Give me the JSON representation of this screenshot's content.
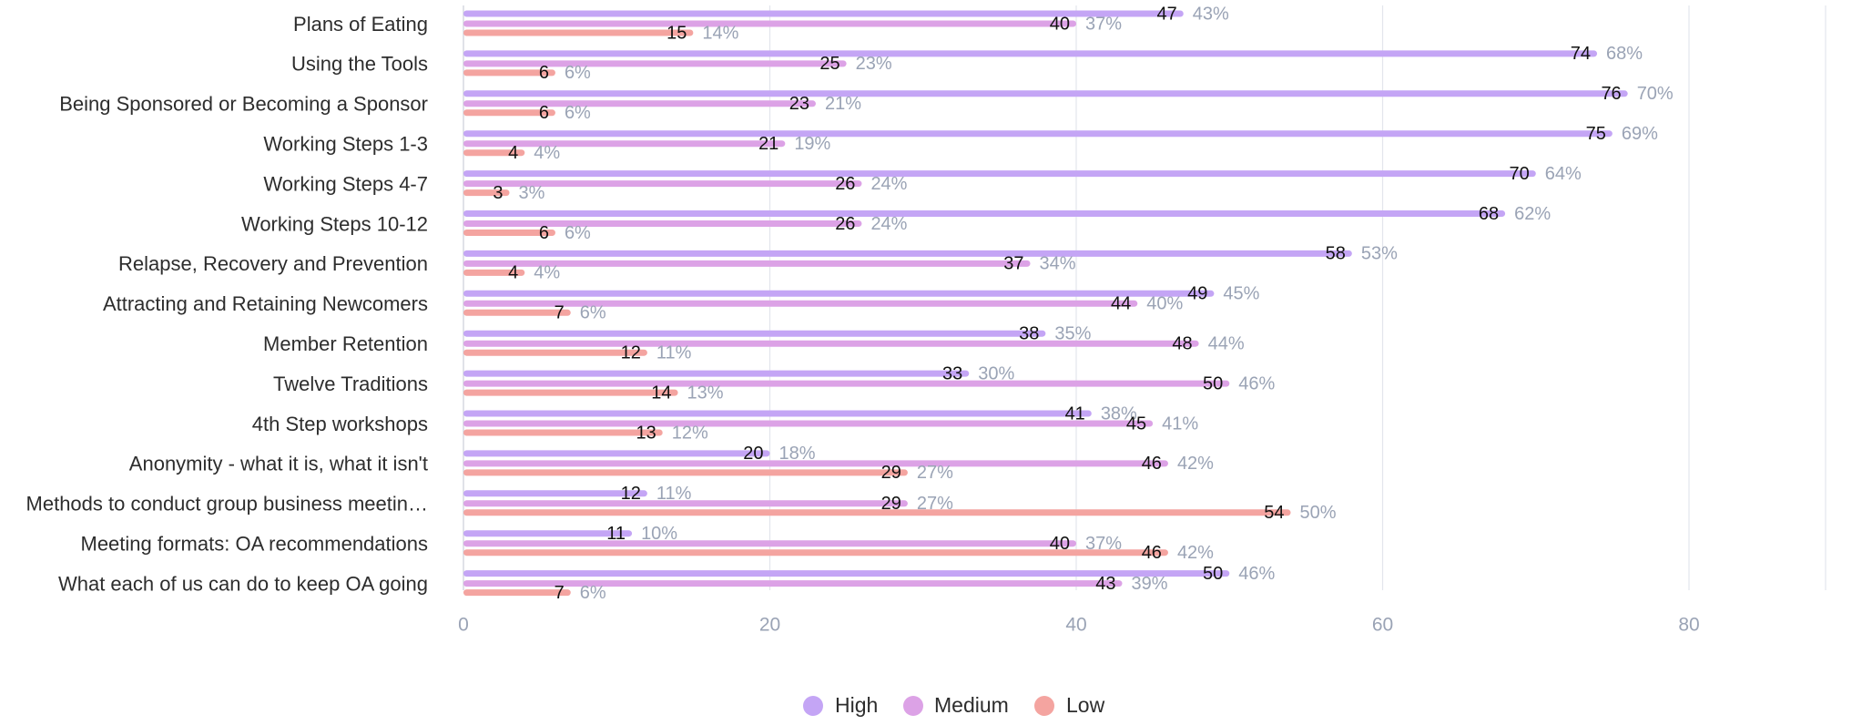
{
  "chart_data": {
    "type": "bar",
    "orientation": "horizontal",
    "categories": [
      "Plans of Eating",
      "Using the Tools",
      "Being Sponsored or Becoming a Sponsor",
      "Working Steps 1-3",
      "Working Steps 4-7",
      "Working Steps 10-12",
      "Relapse, Recovery and Prevention",
      "Attracting and Retaining Newcomers",
      "Member Retention",
      "Twelve Traditions",
      "4th Step workshops",
      "Anonymity - what it is, what it isn't",
      "Methods to conduct group business meetin…",
      "Meeting formats: OA recommendations",
      "What each of us can do to keep OA going"
    ],
    "series": [
      {
        "name": "High",
        "color": "#c4a5f5",
        "values": [
          47,
          74,
          76,
          75,
          70,
          68,
          58,
          49,
          38,
          33,
          41,
          20,
          12,
          11,
          50
        ],
        "percent_labels": [
          "43%",
          "68%",
          "70%",
          "69%",
          "64%",
          "62%",
          "53%",
          "45%",
          "35%",
          "30%",
          "38%",
          "18%",
          "11%",
          "10%",
          "46%"
        ]
      },
      {
        "name": "Medium",
        "color": "#dca2e6",
        "values": [
          40,
          25,
          23,
          21,
          26,
          26,
          37,
          44,
          48,
          50,
          45,
          46,
          29,
          40,
          43
        ],
        "percent_labels": [
          "37%",
          "23%",
          "21%",
          "19%",
          "24%",
          "24%",
          "34%",
          "40%",
          "44%",
          "46%",
          "41%",
          "42%",
          "27%",
          "37%",
          "39%"
        ]
      },
      {
        "name": "Low",
        "color": "#f4a4a0",
        "values": [
          15,
          6,
          6,
          4,
          3,
          6,
          4,
          7,
          12,
          14,
          13,
          29,
          54,
          46,
          7
        ],
        "percent_labels": [
          "14%",
          "6%",
          "6%",
          "4%",
          "3%",
          "6%",
          "4%",
          "6%",
          "11%",
          "13%",
          "12%",
          "27%",
          "50%",
          "42%",
          "6%"
        ]
      }
    ],
    "xlim": [
      0,
      90
    ],
    "xticks": [
      "0",
      "20",
      "40",
      "60",
      "80"
    ],
    "xtick_values": [
      0,
      20,
      40,
      60,
      80
    ],
    "grid": true,
    "legend_position": "bottom-center",
    "title": "",
    "xlabel": "",
    "ylabel": ""
  }
}
